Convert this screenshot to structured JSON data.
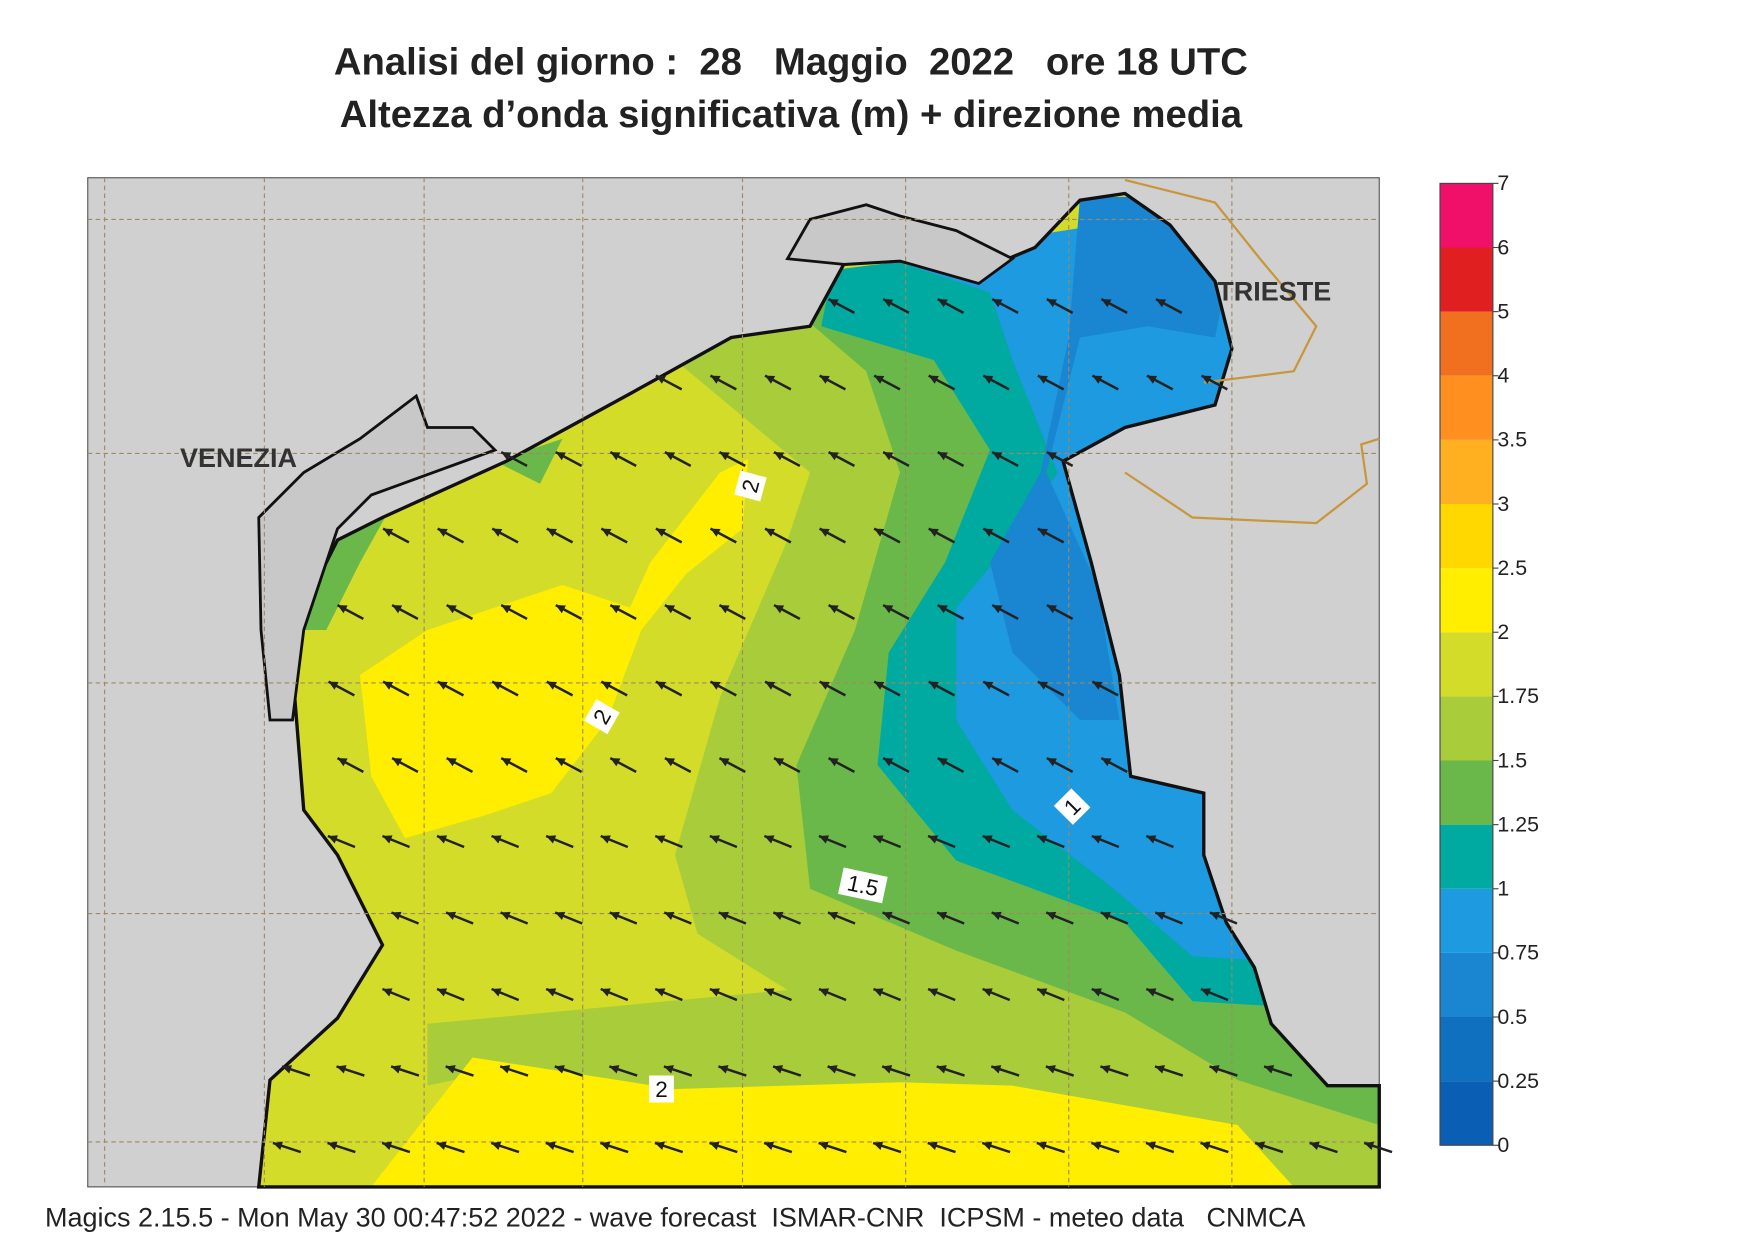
{
  "header": {
    "title_line1": "Analisi del giorno :  28   Maggio  2022   ore 18 UTC",
    "title_line2": "Altezza d’onda significativa (m) + direzione media"
  },
  "map": {
    "cities": [
      "VENEZIA",
      "TRIESTE"
    ],
    "contour_labels": [
      "2",
      "2",
      "1.5",
      "1",
      "2"
    ]
  },
  "colorbar": {
    "labels": [
      0,
      0.25,
      0.5,
      0.75,
      1,
      1.25,
      1.5,
      1.75,
      2,
      2.5,
      3,
      3.5,
      4,
      5,
      6,
      7
    ],
    "colors": [
      "#0a5fb4",
      "#1070c0",
      "#1a85d0",
      "#1d9ae0",
      "#00aaa0",
      "#6ab84a",
      "#a8cc3a",
      "#d4dc2a",
      "#ffee00",
      "#ffd800",
      "#ffb020",
      "#ff9020",
      "#f07020",
      "#e02020",
      "#f0106a"
    ]
  },
  "footer": "Magics 2.15.5 - Mon May 30 00:47:52 2022 - wave forecast  ISMAR-CNR  ICPSM - meteo data   CNMCA"
}
